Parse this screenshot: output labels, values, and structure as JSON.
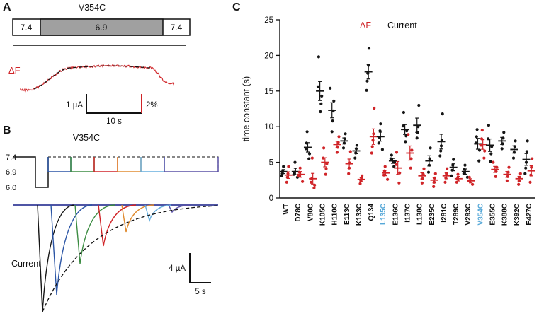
{
  "colors": {
    "red": "#d02428",
    "black": "#151515",
    "gray_fill": "#a0a0a0",
    "highlight_blue": "#56a8d8",
    "baseline_purple": "#4f55a5",
    "sweeps": [
      "#151515",
      "#2b55a5",
      "#3c8c42",
      "#d02428",
      "#e08b30",
      "#66aede",
      "#5a50a5"
    ]
  },
  "panel_a": {
    "label": "A",
    "title": "V354C",
    "ph_segments": [
      "7.4",
      "6.9",
      "7.4"
    ],
    "df_label": "ΔF",
    "scale_current": "1 µA",
    "scale_df": "2%",
    "scale_time": "10 s"
  },
  "panel_b": {
    "label": "B",
    "title": "V354C",
    "ph_levels": [
      "7.4",
      "6.9",
      "6.0"
    ],
    "current_label": "Current",
    "scale_current": "4 µA",
    "scale_time": "5 s"
  },
  "panel_c": {
    "label": "C",
    "legend_df": "ΔF",
    "legend_current": "Current",
    "ylabel": "time constant (s)"
  },
  "chart_data": {
    "type": "scatter",
    "title": "",
    "xlabel": "",
    "ylabel": "time constant (s)",
    "ylim": [
      0,
      25
    ],
    "yticks": [
      0,
      5,
      10,
      15,
      20,
      25
    ],
    "grid": false,
    "legend_position": "top",
    "categories": [
      "WT",
      "D78C",
      "V80C",
      "K105C",
      "H110C",
      "E113C",
      "K133C",
      "Q134",
      "L135C",
      "E136C",
      "I137C",
      "L138C",
      "E235C",
      "I281C",
      "T289C",
      "V293C",
      "V354C",
      "E355C",
      "K388C",
      "K392C",
      "E427C"
    ],
    "highlighted_categories": [
      "L135C",
      "V354C"
    ],
    "series": [
      {
        "name": "Current",
        "color": "#151515",
        "means": [
          3.7,
          3.7,
          7.1,
          15.0,
          12.3,
          8.0,
          6.6,
          17.7,
          8.6,
          5.2,
          9.6,
          10.2,
          5.2,
          7.9,
          4.3,
          3.7,
          7.6,
          7.4,
          8.0,
          6.8,
          5.4
        ],
        "points": [
          [
            3.1,
            3.4,
            3.8,
            4.4
          ],
          [
            2.9,
            3.3,
            3.6,
            5.0
          ],
          [
            5.5,
            6.2,
            6.9,
            7.7,
            9.3
          ],
          [
            12.1,
            13.2,
            14.3,
            15.6,
            19.8
          ],
          [
            9.3,
            10.8,
            12.2,
            13.6,
            15.4
          ],
          [
            7.0,
            7.7,
            8.3,
            9.0
          ],
          [
            5.6,
            6.3,
            6.9,
            7.4
          ],
          [
            15.1,
            16.4,
            17.5,
            18.6,
            21.0
          ],
          [
            6.8,
            7.7,
            8.5,
            9.4,
            10.4
          ],
          [
            4.4,
            5.0,
            5.5,
            6.0
          ],
          [
            7.9,
            8.7,
            9.4,
            10.1,
            12.0
          ],
          [
            8.4,
            9.2,
            10.0,
            13.0
          ],
          [
            3.6,
            4.6,
            5.5,
            7.0
          ],
          [
            5.9,
            6.6,
            7.3,
            8.1,
            11.8
          ],
          [
            3.1,
            3.9,
            4.6,
            5.4
          ],
          [
            2.9,
            3.4,
            4.0,
            4.6
          ],
          [
            5.2,
            6.7,
            7.7,
            8.6,
            9.6
          ],
          [
            5.1,
            6.2,
            7.2,
            8.3,
            10.2
          ],
          [
            6.9,
            7.6,
            8.4,
            9.2
          ],
          [
            5.6,
            6.4,
            7.2,
            8.0
          ],
          [
            3.4,
            4.2,
            5.0,
            6.5,
            8.0
          ]
        ]
      },
      {
        "name": "ΔF",
        "color": "#d02428",
        "means": [
          3.2,
          3.3,
          2.7,
          5.0,
          7.5,
          4.8,
          2.6,
          8.6,
          3.5,
          4.2,
          6.3,
          3.1,
          2.5,
          3.1,
          2.7,
          2.4,
          7.5,
          4.0,
          3.3,
          2.7,
          3.8
        ],
        "points": [
          [
            2.2,
            2.9,
            3.4,
            4.4
          ],
          [
            2.3,
            3.1,
            3.6,
            4.2
          ],
          [
            1.4,
            1.8,
            2.2,
            2.7,
            5.6
          ],
          [
            3.3,
            4.1,
            4.8,
            5.6,
            7.0
          ],
          [
            6.4,
            7.1,
            7.8,
            8.6
          ],
          [
            3.4,
            4.2,
            4.9,
            6.5
          ],
          [
            2.0,
            2.4,
            2.8,
            3.1
          ],
          [
            6.3,
            7.2,
            8.1,
            9.0,
            12.6
          ],
          [
            2.6,
            3.2,
            3.8,
            4.4
          ],
          [
            2.1,
            3.5,
            4.7,
            6.4
          ],
          [
            4.2,
            5.5,
            6.7,
            8.9
          ],
          [
            2.1,
            2.7,
            3.3,
            4.1
          ],
          [
            1.6,
            2.2,
            2.8,
            3.4
          ],
          [
            2.2,
            2.8,
            3.4,
            4.1
          ],
          [
            2.2,
            2.7,
            3.3
          ],
          [
            1.9,
            2.4,
            2.9
          ],
          [
            5.6,
            6.6,
            7.4,
            8.3,
            9.5
          ],
          [
            3.0,
            3.7,
            4.3,
            5.0
          ],
          [
            2.4,
            3.0,
            3.6,
            4.3
          ],
          [
            1.9,
            2.4,
            2.9,
            3.4
          ],
          [
            2.2,
            3.2,
            4.3,
            5.5
          ]
        ]
      }
    ]
  }
}
